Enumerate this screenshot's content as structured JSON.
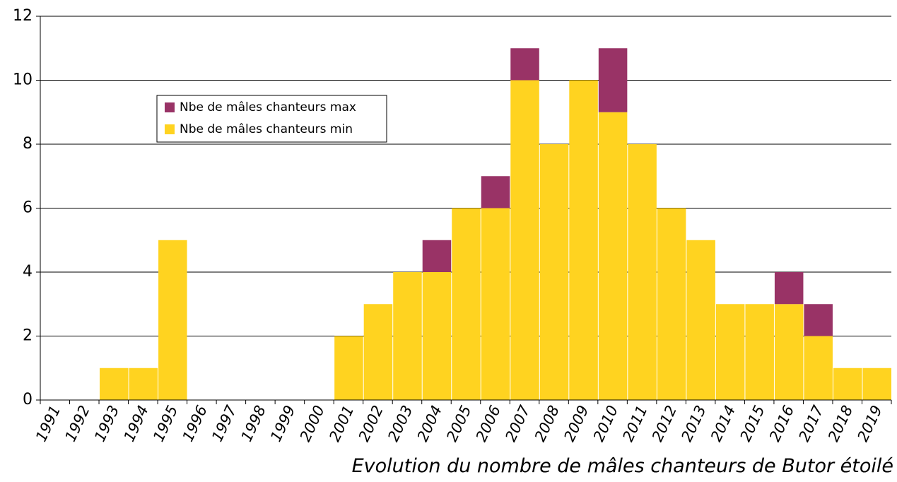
{
  "chart_data": {
    "type": "stacked_bar",
    "title": "Evolution du nombre de mâles chanteurs de Butor étoilé",
    "categories": [
      "1991",
      "1992",
      "1993",
      "1994",
      "1995",
      "1996",
      "1997",
      "1998",
      "1999",
      "2000",
      "2001",
      "2002",
      "2003",
      "2004",
      "2005",
      "2006",
      "2007",
      "2008",
      "2009",
      "2010",
      "2011",
      "2012",
      "2013",
      "2014",
      "2015",
      "2016",
      "2017",
      "2018",
      "2019"
    ],
    "series": [
      {
        "name": "Nbe de mâles chanteurs min",
        "color": "#ffd320",
        "values": [
          0,
          0,
          1,
          1,
          5,
          0,
          0,
          0,
          0,
          0,
          2,
          3,
          4,
          4,
          6,
          6,
          10,
          8,
          10,
          9,
          8,
          6,
          5,
          3,
          3,
          3,
          2,
          1,
          1
        ]
      },
      {
        "name": "Nbe de mâles chanteurs max",
        "color": "#993366",
        "values": [
          0,
          0,
          0,
          0,
          0,
          0,
          0,
          0,
          0,
          0,
          0,
          0,
          0,
          1,
          0,
          1,
          1,
          0,
          0,
          2,
          0,
          0,
          0,
          0,
          0,
          1,
          1,
          0,
          0
        ]
      }
    ],
    "ylim": [
      0,
      12
    ],
    "yticks": [
      0,
      2,
      4,
      6,
      8,
      10,
      12
    ],
    "grid": true
  }
}
